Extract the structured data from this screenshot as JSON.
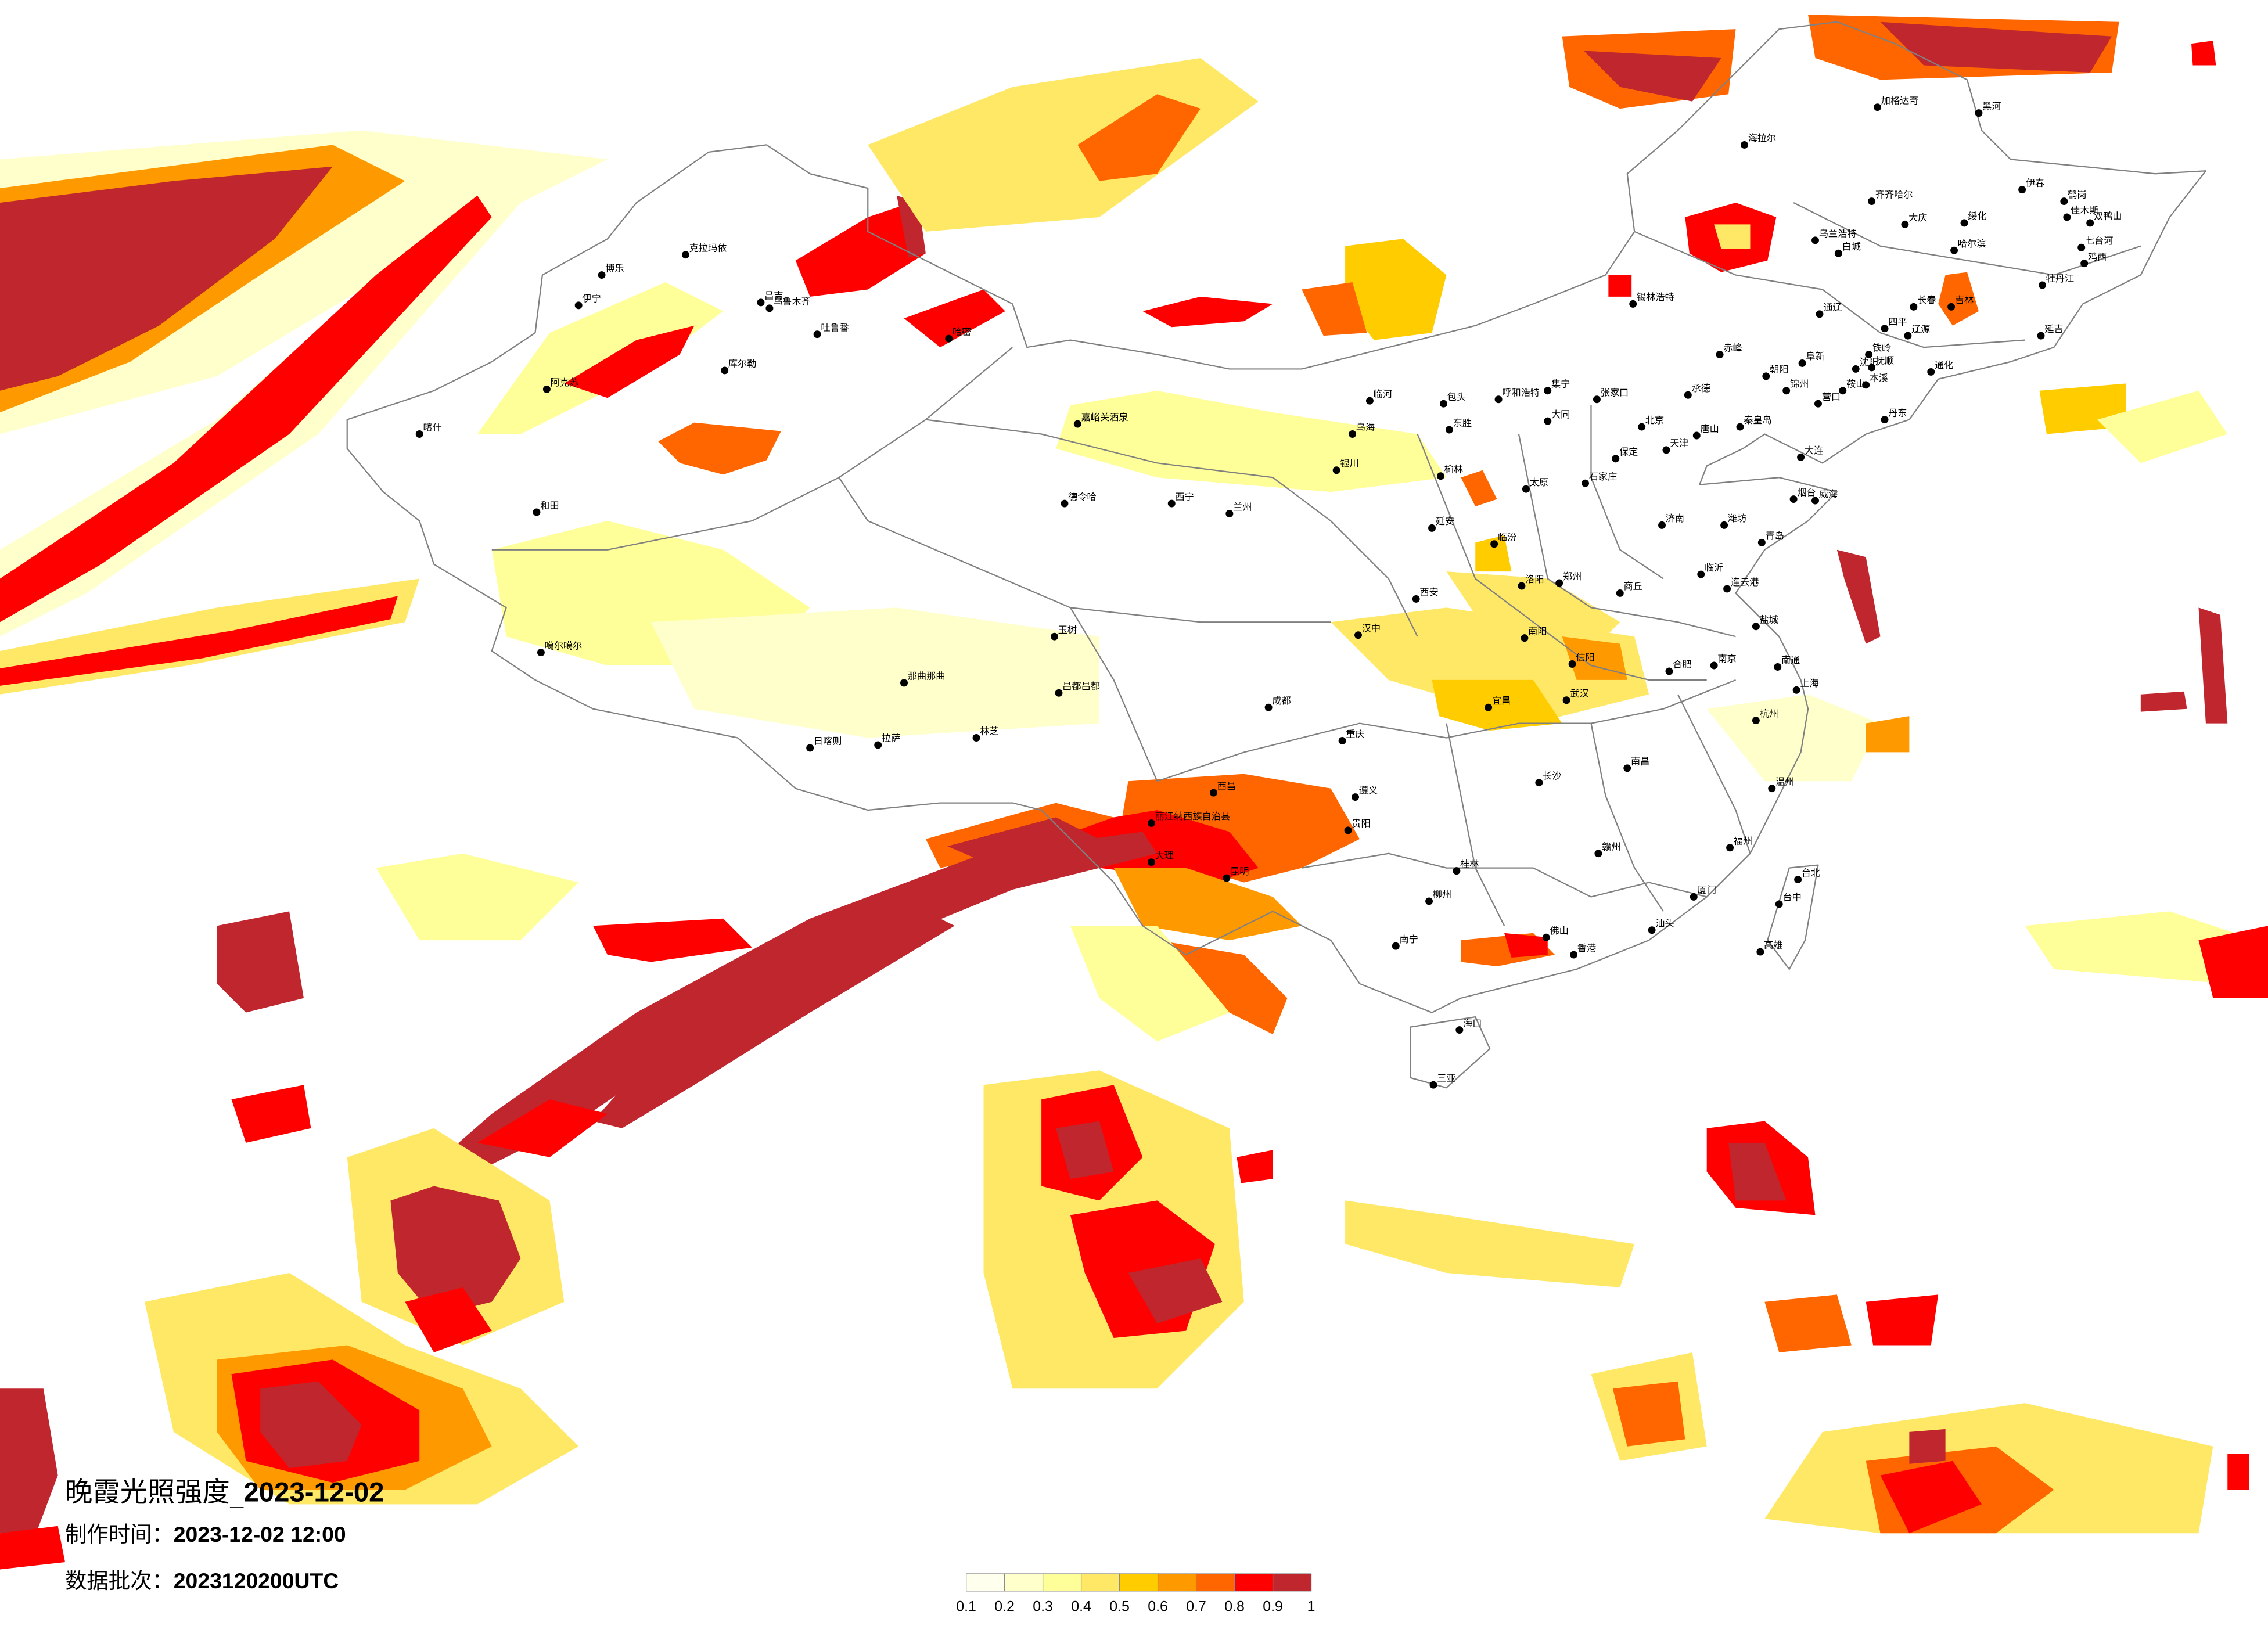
{
  "title": {
    "prefix": "晚霞光照强度_",
    "date": "2023-12-02"
  },
  "meta": {
    "made_label": "制作时间：",
    "made_value": "2023-12-02 12:00",
    "batch_label": "数据批次：",
    "batch_value": "2023120200UTC"
  },
  "legend": {
    "colors": [
      "#FFFFEE",
      "#FFFFCC",
      "#FFFF99",
      "#FFE866",
      "#FFCC00",
      "#FF9900",
      "#FF6600",
      "#FF0000",
      "#C0262E"
    ],
    "labels": [
      "0.1",
      "0.2",
      "0.3",
      "0.4",
      "0.5",
      "0.6",
      "0.7",
      "0.8",
      "0.9",
      "1"
    ]
  },
  "map": {
    "boundary_color": "#808080",
    "city_marker": "black-dot"
  },
  "cities": [
    "克拉玛依",
    "博乐",
    "伊宁",
    "昌吉",
    "乌鲁木齐",
    "吐鲁番",
    "哈密",
    "库尔勒",
    "阿克苏",
    "喀什",
    "和田",
    "噶尔噶尔",
    "那曲那曲",
    "昌都昌都",
    "玉树",
    "德令哈",
    "日喀则",
    "拉萨",
    "林芝",
    "嘉峪关酒泉",
    "西宁",
    "兰州",
    "银川",
    "乌海",
    "临河",
    "包头",
    "东胜",
    "呼和浩特",
    "集宁",
    "大同",
    "张家口",
    "北京",
    "天津",
    "唐山",
    "保定",
    "石家庄",
    "太原",
    "榆林",
    "延安",
    "临汾",
    "西安",
    "汉中",
    "洛阳",
    "郑州",
    "商丘",
    "南阳",
    "信阳",
    "济南",
    "青岛",
    "潍坊",
    "烟台",
    "威海",
    "临沂",
    "连云港",
    "盐城",
    "南通",
    "南京",
    "合肥",
    "上海",
    "杭州",
    "温州",
    "福州",
    "厦门",
    "台北",
    "台中",
    "高雄",
    "武汉",
    "宜昌",
    "长沙",
    "南昌",
    "赣州",
    "重庆",
    "成都",
    "遵义",
    "贵阳",
    "西昌",
    "丽江纳西族自治县",
    "大理",
    "昆明",
    "南宁",
    "桂林",
    "柳州",
    "佛山",
    "香港",
    "汕头",
    "海口",
    "三亚",
    "承德",
    "秦皇岛",
    "锦州",
    "朝阳",
    "阜新",
    "营口",
    "大连",
    "赤峰",
    "锡林浩特",
    "通辽",
    "乌兰浩特",
    "白城",
    "海拉尔",
    "加格达奇",
    "黑河",
    "齐齐哈尔",
    "大庆",
    "绥化",
    "哈尔滨",
    "伊春",
    "鹤岗",
    "佳木斯",
    "双鸭山",
    "七台河",
    "鸡西",
    "牡丹江",
    "吉林",
    "长春",
    "四平",
    "辽源",
    "延吉",
    "铁岭",
    "沈阳",
    "抚顺",
    "本溪",
    "鞍山",
    "丹东",
    "通化"
  ]
}
